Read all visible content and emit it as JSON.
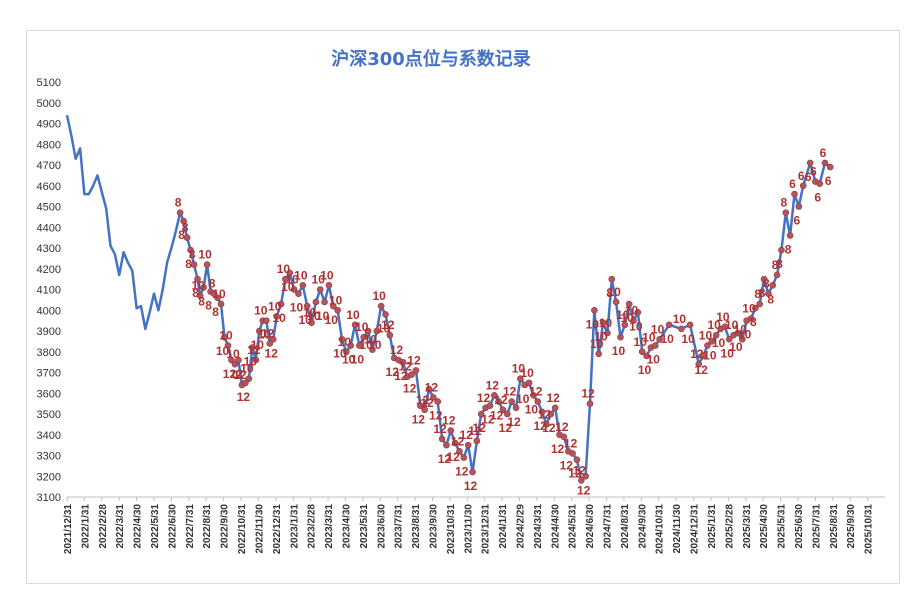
{
  "chart_data": {
    "type": "line",
    "title": "沪深300点位与系数记录",
    "xlabel": "",
    "ylabel": "",
    "ylim": [
      3100,
      5100
    ],
    "yticks": [
      3100,
      3200,
      3300,
      3400,
      3500,
      3600,
      3700,
      3800,
      3900,
      4000,
      4100,
      4200,
      4300,
      4400,
      4500,
      4600,
      4700,
      4800,
      4900,
      5000,
      5100
    ],
    "grid": false,
    "legend": "none",
    "colors": {
      "line": "#4472c4",
      "marker": "#b5545a",
      "label": "#b03030",
      "title": "#4472c4"
    },
    "x_tick_labels": [
      "2021/12/31",
      "2022/1/31",
      "2022/2/28",
      "2022/3/31",
      "2022/4/30",
      "2022/5/31",
      "2022/6/30",
      "2022/7/31",
      "2022/8/31",
      "2022/9/30",
      "2022/10/31",
      "2022/11/30",
      "2022/12/31",
      "2023/1/31",
      "2023/2/28",
      "2023/3/31",
      "2023/4/30",
      "2023/5/31",
      "2023/6/30",
      "2023/7/31",
      "2023/8/31",
      "2023/9/30",
      "2023/10/31",
      "2023/11/30",
      "2023/12/31",
      "2024/1/31",
      "2024/2/29",
      "2024/3/31",
      "2024/4/30",
      "2024/5/31",
      "2024/6/30",
      "2024/7/31",
      "2024/8/31",
      "2024/9/30",
      "2024/10/31",
      "2024/11/30",
      "2024/12/31",
      "2025/1/31",
      "2025/2/28",
      "2025/3/31",
      "2025/4/30",
      "2025/5/31",
      "2025/6/30",
      "2025/7/31",
      "2025/8/31",
      "2025/9/30",
      "2025/10/31"
    ],
    "x_range_months": [
      0,
      47
    ],
    "points": [
      {
        "m": 0.0,
        "y": 4940
      },
      {
        "m": 0.25,
        "y": 4840
      },
      {
        "m": 0.5,
        "y": 4730
      },
      {
        "m": 0.75,
        "y": 4780
      },
      {
        "m": 1.0,
        "y": 4560
      },
      {
        "m": 1.25,
        "y": 4560
      },
      {
        "m": 1.5,
        "y": 4600
      },
      {
        "m": 1.75,
        "y": 4650
      },
      {
        "m": 2.0,
        "y": 4570
      },
      {
        "m": 2.25,
        "y": 4490
      },
      {
        "m": 2.5,
        "y": 4310
      },
      {
        "m": 2.75,
        "y": 4270
      },
      {
        "m": 3.0,
        "y": 4170
      },
      {
        "m": 3.25,
        "y": 4280
      },
      {
        "m": 3.5,
        "y": 4230
      },
      {
        "m": 3.75,
        "y": 4190
      },
      {
        "m": 4.0,
        "y": 4010
      },
      {
        "m": 4.25,
        "y": 4020
      },
      {
        "m": 4.5,
        "y": 3910
      },
      {
        "m": 4.75,
        "y": 3990
      },
      {
        "m": 5.0,
        "y": 4080
      },
      {
        "m": 5.25,
        "y": 4000
      },
      {
        "m": 5.5,
        "y": 4100
      },
      {
        "m": 5.75,
        "y": 4230
      },
      {
        "m": 6.0,
        "y": 4300
      },
      {
        "m": 6.25,
        "y": 4380
      },
      {
        "m": 6.5,
        "y": 4470,
        "label": "8"
      },
      {
        "m": 6.7,
        "y": 4430,
        "label": "8"
      },
      {
        "m": 6.9,
        "y": 4350,
        "label": "8"
      },
      {
        "m": 7.1,
        "y": 4290,
        "label": "8"
      },
      {
        "m": 7.3,
        "y": 4220,
        "label": "8"
      },
      {
        "m": 7.5,
        "y": 4150,
        "label": "8"
      },
      {
        "m": 7.65,
        "y": 4070,
        "label": "10"
      },
      {
        "m": 7.85,
        "y": 4110,
        "label": "8"
      },
      {
        "m": 8.05,
        "y": 4220,
        "label": "10"
      },
      {
        "m": 8.25,
        "y": 4090,
        "label": "8"
      },
      {
        "m": 8.45,
        "y": 4080,
        "label": "8"
      },
      {
        "m": 8.65,
        "y": 4060,
        "label": "8"
      },
      {
        "m": 8.85,
        "y": 4030,
        "label": "10"
      },
      {
        "m": 9.05,
        "y": 3870,
        "label": "10"
      },
      {
        "m": 9.25,
        "y": 3830,
        "label": "10"
      },
      {
        "m": 9.45,
        "y": 3760,
        "label": "12"
      },
      {
        "m": 9.65,
        "y": 3740,
        "label": "10"
      },
      {
        "m": 9.85,
        "y": 3760,
        "label": "12"
      },
      {
        "m": 10.05,
        "y": 3640,
        "label": "12"
      },
      {
        "m": 10.25,
        "y": 3650,
        "label": "12"
      },
      {
        "m": 10.45,
        "y": 3670,
        "label": "10"
      },
      {
        "m": 10.65,
        "y": 3820,
        "label": "10"
      },
      {
        "m": 10.85,
        "y": 3760,
        "label": "12"
      },
      {
        "m": 11.05,
        "y": 3900,
        "label": "10"
      },
      {
        "m": 11.25,
        "y": 3950,
        "label": "10"
      },
      {
        "m": 11.45,
        "y": 3950,
        "label": "10"
      },
      {
        "m": 11.65,
        "y": 3840,
        "label": "12"
      },
      {
        "m": 11.85,
        "y": 3860,
        "label": "12"
      },
      {
        "m": 12.05,
        "y": 3970,
        "label": "10"
      },
      {
        "m": 12.3,
        "y": 4030,
        "label": "10"
      },
      {
        "m": 12.55,
        "y": 4150,
        "label": "10"
      },
      {
        "m": 12.8,
        "y": 4180,
        "label": "10"
      },
      {
        "m": 13.05,
        "y": 4100,
        "label": "10"
      },
      {
        "m": 13.3,
        "y": 4080,
        "label": "10"
      },
      {
        "m": 13.55,
        "y": 4120,
        "label": "10"
      },
      {
        "m": 13.8,
        "y": 4020,
        "label": "10"
      },
      {
        "m": 14.05,
        "y": 3940,
        "label": "10"
      },
      {
        "m": 14.3,
        "y": 4040,
        "label": "10"
      },
      {
        "m": 14.55,
        "y": 4100,
        "label": "10"
      },
      {
        "m": 14.8,
        "y": 4040,
        "label": "10"
      },
      {
        "m": 15.05,
        "y": 4120,
        "label": "10"
      },
      {
        "m": 15.3,
        "y": 4020,
        "label": "10"
      },
      {
        "m": 15.55,
        "y": 4000,
        "label": "10"
      },
      {
        "m": 15.8,
        "y": 3860,
        "label": "10"
      },
      {
        "m": 16.05,
        "y": 3800,
        "label": "10"
      },
      {
        "m": 16.3,
        "y": 3830,
        "label": "10"
      },
      {
        "m": 16.55,
        "y": 3930,
        "label": "10"
      },
      {
        "m": 16.8,
        "y": 3830,
        "label": "10"
      },
      {
        "m": 17.05,
        "y": 3870,
        "label": "10"
      },
      {
        "m": 17.3,
        "y": 3900,
        "label": "10"
      },
      {
        "m": 17.55,
        "y": 3810,
        "label": "10"
      },
      {
        "m": 17.8,
        "y": 3900,
        "label": "10"
      },
      {
        "m": 18.05,
        "y": 4020,
        "label": "10"
      },
      {
        "m": 18.3,
        "y": 3980,
        "label": "10"
      },
      {
        "m": 18.55,
        "y": 3880,
        "label": "12"
      },
      {
        "m": 18.8,
        "y": 3770,
        "label": "12"
      },
      {
        "m": 19.05,
        "y": 3760,
        "label": "12"
      },
      {
        "m": 19.3,
        "y": 3750,
        "label": "12"
      },
      {
        "m": 19.55,
        "y": 3680,
        "label": "12"
      },
      {
        "m": 19.8,
        "y": 3690,
        "label": "12"
      },
      {
        "m": 20.05,
        "y": 3710,
        "label": "12"
      },
      {
        "m": 20.3,
        "y": 3540,
        "label": "12"
      },
      {
        "m": 20.55,
        "y": 3520,
        "label": "12"
      },
      {
        "m": 20.8,
        "y": 3620,
        "label": "12"
      },
      {
        "m": 21.05,
        "y": 3580,
        "label": "12"
      },
      {
        "m": 21.3,
        "y": 3560,
        "label": "12"
      },
      {
        "m": 21.55,
        "y": 3380,
        "label": "12"
      },
      {
        "m": 21.8,
        "y": 3350,
        "label": "12"
      },
      {
        "m": 22.05,
        "y": 3420,
        "label": "12"
      },
      {
        "m": 22.3,
        "y": 3360,
        "label": "12"
      },
      {
        "m": 22.55,
        "y": 3320,
        "label": "12"
      },
      {
        "m": 22.8,
        "y": 3290,
        "label": "12"
      },
      {
        "m": 23.05,
        "y": 3350,
        "label": "12"
      },
      {
        "m": 23.3,
        "y": 3220,
        "label": "12"
      },
      {
        "m": 23.55,
        "y": 3370,
        "label": "12"
      },
      {
        "m": 23.8,
        "y": 3500,
        "label": "12"
      },
      {
        "m": 24.05,
        "y": 3530,
        "label": "12"
      },
      {
        "m": 24.3,
        "y": 3540,
        "label": "12"
      },
      {
        "m": 24.55,
        "y": 3590,
        "label": "12"
      },
      {
        "m": 24.8,
        "y": 3560,
        "label": "12"
      },
      {
        "m": 25.05,
        "y": 3520,
        "label": "12"
      },
      {
        "m": 25.3,
        "y": 3500,
        "label": "12"
      },
      {
        "m": 25.55,
        "y": 3560,
        "label": "12"
      },
      {
        "m": 25.8,
        "y": 3530,
        "label": "12"
      },
      {
        "m": 26.05,
        "y": 3670,
        "label": "10"
      },
      {
        "m": 26.3,
        "y": 3640,
        "label": "10"
      },
      {
        "m": 26.55,
        "y": 3650,
        "label": "10"
      },
      {
        "m": 26.8,
        "y": 3590,
        "label": "10"
      },
      {
        "m": 27.05,
        "y": 3560,
        "label": "12"
      },
      {
        "m": 27.3,
        "y": 3510,
        "label": "12"
      },
      {
        "m": 27.55,
        "y": 3450,
        "label": "12"
      },
      {
        "m": 27.8,
        "y": 3500,
        "label": "12"
      },
      {
        "m": 28.05,
        "y": 3530,
        "label": "12"
      },
      {
        "m": 28.3,
        "y": 3400,
        "label": "12"
      },
      {
        "m": 28.55,
        "y": 3390,
        "label": "12"
      },
      {
        "m": 28.8,
        "y": 3320,
        "label": "12"
      },
      {
        "m": 29.05,
        "y": 3310,
        "label": "12"
      },
      {
        "m": 29.3,
        "y": 3280,
        "label": "12"
      },
      {
        "m": 29.55,
        "y": 3180,
        "label": "12"
      },
      {
        "m": 29.8,
        "y": 3200,
        "label": "12"
      },
      {
        "m": 30.05,
        "y": 3550,
        "label": "12"
      },
      {
        "m": 30.3,
        "y": 4000,
        "label": "10"
      },
      {
        "m": 30.55,
        "y": 3790,
        "label": "10"
      },
      {
        "m": 30.8,
        "y": 3940,
        "label": "10"
      },
      {
        "m": 31.05,
        "y": 3890,
        "label": "10"
      },
      {
        "m": 31.3,
        "y": 4150,
        "label": "8"
      },
      {
        "m": 31.55,
        "y": 4040,
        "label": "10"
      },
      {
        "m": 31.8,
        "y": 3870,
        "label": "10"
      },
      {
        "m": 32.05,
        "y": 3930,
        "label": "10"
      },
      {
        "m": 32.3,
        "y": 4030,
        "label": "10"
      },
      {
        "m": 32.55,
        "y": 3950,
        "label": "10"
      },
      {
        "m": 32.8,
        "y": 3990,
        "label": "10"
      },
      {
        "m": 33.05,
        "y": 3800,
        "label": "10"
      },
      {
        "m": 33.3,
        "y": 3780,
        "label": "10"
      },
      {
        "m": 33.55,
        "y": 3820,
        "label": "10"
      },
      {
        "m": 33.8,
        "y": 3830,
        "label": "10"
      },
      {
        "m": 34.05,
        "y": 3860,
        "label": "10"
      },
      {
        "m": 34.6,
        "y": 3930,
        "label": "10"
      },
      {
        "m": 35.3,
        "y": 3910,
        "label": "10"
      },
      {
        "m": 35.8,
        "y": 3930,
        "label": "10"
      },
      {
        "m": 36.3,
        "y": 3740,
        "label": "12"
      },
      {
        "m": 36.55,
        "y": 3780,
        "label": "12"
      },
      {
        "m": 36.8,
        "y": 3830,
        "label": "10"
      },
      {
        "m": 37.05,
        "y": 3850,
        "label": "10"
      },
      {
        "m": 37.3,
        "y": 3880,
        "label": "10"
      },
      {
        "m": 37.55,
        "y": 3910,
        "label": "10"
      },
      {
        "m": 37.8,
        "y": 3920,
        "label": "10"
      },
      {
        "m": 38.05,
        "y": 3860,
        "label": "10"
      },
      {
        "m": 38.3,
        "y": 3880,
        "label": "10"
      },
      {
        "m": 38.55,
        "y": 3890,
        "label": "10"
      },
      {
        "m": 38.8,
        "y": 3860,
        "label": "10"
      },
      {
        "m": 39.05,
        "y": 3950,
        "label": "10"
      },
      {
        "m": 39.3,
        "y": 3960,
        "label": "10"
      },
      {
        "m": 39.55,
        "y": 4010,
        "label": "8"
      },
      {
        "m": 39.8,
        "y": 4030,
        "label": "8"
      },
      {
        "m": 40.05,
        "y": 4150,
        "label": "8"
      },
      {
        "m": 40.3,
        "y": 4080,
        "label": "8"
      },
      {
        "m": 40.55,
        "y": 4120,
        "label": "8"
      },
      {
        "m": 40.8,
        "y": 4170,
        "label": "8"
      },
      {
        "m": 41.05,
        "y": 4290,
        "label": "8"
      },
      {
        "m": 41.3,
        "y": 4470,
        "label": "8"
      },
      {
        "m": 41.55,
        "y": 4360,
        "label": "8"
      },
      {
        "m": 41.8,
        "y": 4560,
        "label": "6"
      },
      {
        "m": 42.05,
        "y": 4500,
        "label": "6"
      },
      {
        "m": 42.3,
        "y": 4600,
        "label": "6"
      },
      {
        "m": 42.7,
        "y": 4710,
        "label": "6"
      },
      {
        "m": 43.0,
        "y": 4620,
        "label": "6"
      },
      {
        "m": 43.25,
        "y": 4610,
        "label": "6"
      },
      {
        "m": 43.55,
        "y": 4710,
        "label": "6"
      },
      {
        "m": 43.85,
        "y": 4690,
        "label": "6"
      }
    ]
  }
}
